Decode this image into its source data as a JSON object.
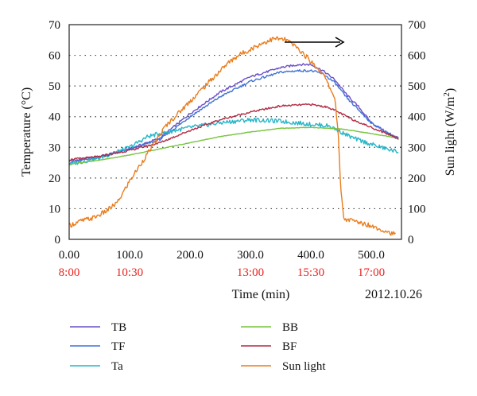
{
  "chart_data": {
    "type": "line",
    "xlabel": "Time (min)",
    "ylabel_left": "Temperature (°C)",
    "ylabel_right_main": "Sun light (W/m",
    "ylabel_right_sup": "2",
    "ylabel_right_end": ")",
    "date": "2012.10.26",
    "xlim": [
      0,
      550
    ],
    "ylim_left": [
      0,
      70
    ],
    "ylim_right": [
      0,
      700
    ],
    "x_ticks": [
      {
        "value": 0,
        "label": "0.00",
        "time": "8:00"
      },
      {
        "value": 100,
        "label": "100.0",
        "time": "10:30"
      },
      {
        "value": 200,
        "label": "200.0"
      },
      {
        "value": 300,
        "label": "300.0",
        "time": "13:00"
      },
      {
        "value": 400,
        "label": "400.0",
        "time": "15:30"
      },
      {
        "value": 500,
        "label": "500.0",
        "time": "17:00"
      }
    ],
    "y_left_ticks": [
      "0",
      "10",
      "20",
      "30",
      "40",
      "50",
      "60",
      "70"
    ],
    "y_right_ticks": [
      "0",
      "100",
      "200",
      "300",
      "400",
      "500",
      "600",
      "700"
    ],
    "grid": "horizontal dotted",
    "legend_position": "bottom",
    "series": [
      {
        "name": "TB",
        "color": "#6a4fc6",
        "axis": "left",
        "x": [
          0,
          50,
          100,
          150,
          200,
          250,
          300,
          350,
          380,
          400,
          420,
          440,
          460,
          480,
          500,
          525,
          545
        ],
        "y": [
          25.5,
          27,
          29.5,
          33,
          41,
          48,
          53,
          56,
          57,
          57,
          55,
          52,
          47,
          43,
          38,
          35,
          32.5
        ]
      },
      {
        "name": "TF",
        "color": "#3f73d6",
        "axis": "left",
        "x": [
          0,
          50,
          100,
          150,
          200,
          250,
          300,
          350,
          380,
          400,
          420,
          440,
          460,
          480,
          500,
          525,
          545
        ],
        "y": [
          25,
          26.8,
          29.3,
          32.5,
          40,
          46.5,
          51.5,
          54.5,
          55,
          55,
          54,
          51,
          46,
          42,
          38,
          35,
          33
        ]
      },
      {
        "name": "Ta",
        "color": "#27b6c8",
        "axis": "left",
        "x": [
          0,
          50,
          100,
          130,
          150,
          200,
          250,
          300,
          350,
          400,
          430,
          450,
          470,
          500,
          525,
          545
        ],
        "y": [
          24.5,
          26.5,
          30,
          33.5,
          34.5,
          36.5,
          38,
          39,
          38.5,
          37.5,
          37,
          35,
          33,
          31,
          29.5,
          28.5
        ]
      },
      {
        "name": "BB",
        "color": "#77c43d",
        "axis": "left",
        "x": [
          0,
          50,
          100,
          150,
          200,
          250,
          300,
          350,
          400,
          450,
          500,
          545
        ],
        "y": [
          24.5,
          25.8,
          27.5,
          29.5,
          31.5,
          33.5,
          35,
          36.2,
          36.5,
          36,
          34.5,
          33
        ]
      },
      {
        "name": "BF",
        "color": "#b32c45",
        "axis": "left",
        "x": [
          0,
          50,
          100,
          150,
          200,
          250,
          300,
          350,
          400,
          430,
          450,
          470,
          500,
          525,
          545
        ],
        "y": [
          26,
          27,
          29,
          31.5,
          35.5,
          39,
          41.5,
          43.5,
          44,
          43,
          41,
          39,
          36.5,
          34.5,
          33
        ]
      },
      {
        "name": "Sun light",
        "color": "#e97d1e",
        "axis": "right",
        "x": [
          0,
          20,
          40,
          60,
          80,
          100,
          120,
          140,
          160,
          180,
          200,
          220,
          240,
          260,
          280,
          300,
          320,
          340,
          360,
          380,
          400,
          420,
          440,
          445,
          450,
          455,
          460,
          480,
          500,
          520,
          540
        ],
        "y": [
          45,
          60,
          70,
          90,
          120,
          190,
          250,
          310,
          370,
          410,
          450,
          490,
          530,
          570,
          600,
          620,
          640,
          655,
          650,
          620,
          580,
          540,
          460,
          350,
          150,
          65,
          65,
          55,
          45,
          30,
          15
        ]
      }
    ],
    "annotations": [
      "arrow pointing right near Sun light peak"
    ]
  }
}
